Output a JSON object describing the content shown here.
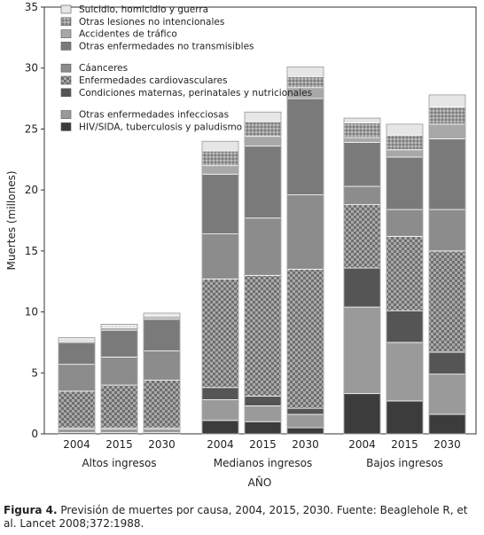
{
  "chart_data": {
    "type": "bar",
    "stacked": true,
    "ylabel": "Muertes (millones)",
    "xlabel": "AÑO",
    "ylim": [
      0,
      35
    ],
    "yticks": [
      0,
      5,
      10,
      15,
      20,
      25,
      30,
      35
    ],
    "groups": [
      {
        "name": "Altos ingresos",
        "years": [
          "2004",
          "2015",
          "2030"
        ]
      },
      {
        "name": "Medianos ingresos",
        "years": [
          "2004",
          "2015",
          "2030"
        ]
      },
      {
        "name": "Bajos ingresos",
        "years": [
          "2004",
          "2015",
          "2030"
        ]
      }
    ],
    "series": [
      {
        "name": "HIV/SIDA, tuberculosis y paludismo",
        "color": "#3c3c3c",
        "values": [
          0.1,
          0.1,
          0.1,
          1.1,
          1.0,
          0.5,
          3.3,
          2.7,
          1.6
        ]
      },
      {
        "name": "Otras enfermedades infecciosas",
        "color": "#9a9a9a",
        "values": [
          0.3,
          0.3,
          0.3,
          1.7,
          1.3,
          1.1,
          7.1,
          4.8,
          3.3
        ]
      },
      {
        "name": "Condiciones maternas, perinatales y nutricionales",
        "color": "#555555",
        "values": [
          0.1,
          0.1,
          0.1,
          1.0,
          0.8,
          0.5,
          3.2,
          2.6,
          1.8
        ]
      },
      {
        "name": "Enfermedades cardiovasculares",
        "color": "#8a8a8a",
        "pattern": "check",
        "values": [
          3.0,
          3.5,
          3.9,
          8.9,
          9.9,
          11.4,
          5.2,
          6.1,
          8.3
        ]
      },
      {
        "name": "Cáanceres",
        "color": "#8c8c8c",
        "values": [
          2.2,
          2.3,
          2.4,
          3.7,
          4.7,
          6.1,
          1.5,
          2.2,
          3.4
        ]
      },
      {
        "name": "Otras enfermedades no transmisibles",
        "color": "#7a7a7a",
        "values": [
          1.8,
          2.2,
          2.6,
          4.9,
          5.9,
          7.9,
          3.6,
          4.3,
          5.8
        ]
      },
      {
        "name": "Accidentes de tráfico",
        "color": "#a8a8a8",
        "values": [
          0.1,
          0.2,
          0.2,
          0.7,
          0.8,
          0.9,
          0.4,
          0.6,
          1.2
        ]
      },
      {
        "name": "Otras lesiones no intencionales",
        "color": "#888888",
        "pattern": "dots",
        "values": [
          0.1,
          0.1,
          0.1,
          1.2,
          1.2,
          0.9,
          1.2,
          1.2,
          1.4
        ]
      },
      {
        "name": "Suicidio, homicidio y guerra",
        "color": "#e6e6e6",
        "values": [
          0.2,
          0.2,
          0.2,
          0.8,
          0.8,
          0.8,
          0.4,
          0.9,
          1.0
        ]
      }
    ],
    "legend": {
      "position": "top-left",
      "order": [
        8,
        7,
        6,
        5,
        null,
        4,
        3,
        2,
        null,
        1,
        0
      ]
    }
  },
  "caption": {
    "label": "Figura 4.",
    "text": "Previsión de muertes por causa, 2004, 2015, 2030. Fuente: Beaglehole R, et al. Lancet 2008;372:1988."
  }
}
